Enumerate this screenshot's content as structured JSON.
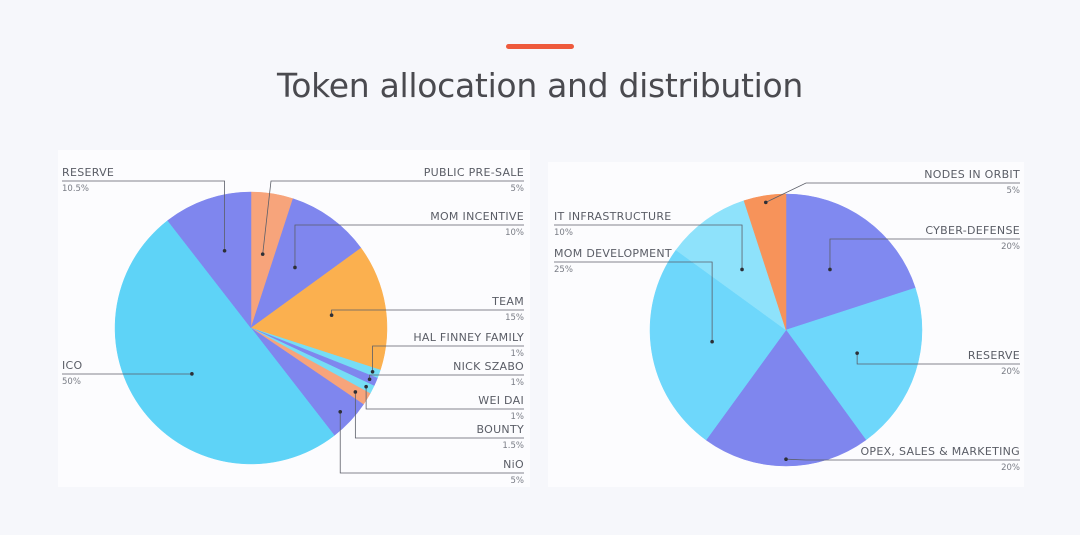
{
  "header": {
    "title": "Token allocation and distribution",
    "accent_color": "#ee5a3c"
  },
  "chart_data": [
    {
      "type": "pie",
      "title": "",
      "slices": [
        {
          "label": "PUBLIC PRE-SALE",
          "value_label": "5%",
          "value": 5,
          "color": "#f7a47b"
        },
        {
          "label": "MOM INCENTIVE",
          "value_label": "10%",
          "value": 10,
          "color": "#7f86ee"
        },
        {
          "label": "TEAM",
          "value_label": "15%",
          "value": 15,
          "color": "#fbb04f"
        },
        {
          "label": "HAL FINNEY FAMILY",
          "value_label": "1%",
          "value": 1,
          "color": "#76ddf5"
        },
        {
          "label": "NICK SZABO",
          "value_label": "1%",
          "value": 1,
          "color": "#7f86ee"
        },
        {
          "label": "WEI DAI",
          "value_label": "1%",
          "value": 1,
          "color": "#76ddf5"
        },
        {
          "label": "BOUNTY",
          "value_label": "1.5%",
          "value": 1.5,
          "color": "#f7a47b"
        },
        {
          "label": "NiO",
          "value_label": "5%",
          "value": 5,
          "color": "#7f86ee"
        },
        {
          "label": "ICO",
          "value_label": "50%",
          "value": 50,
          "color": "#5ed3f7"
        },
        {
          "label": "RESERVE",
          "value_label": "10.5%",
          "value": 10.5,
          "color": "#7f86ee"
        }
      ]
    },
    {
      "type": "pie",
      "title": "",
      "slices": [
        {
          "label": "CYBER-DEFENSE",
          "value_label": "20%",
          "value": 20,
          "color": "#8089f0"
        },
        {
          "label": "RESERVE",
          "value_label": "20%",
          "value": 20,
          "color": "#6ed7fb"
        },
        {
          "label": "OPEX, SALES & MARKETING",
          "value_label": "20%",
          "value": 20,
          "color": "#7f86ee"
        },
        {
          "label": "MOM DEVELOPMENT",
          "value_label": "25%",
          "value": 25,
          "color": "#6ed7fb"
        },
        {
          "label": "IT  INFRASTRUCTURE",
          "value_label": "10%",
          "value": 10,
          "color": "#8ee2fb"
        },
        {
          "label": "NODES IN  ORBIT",
          "value_label": "5%",
          "value": 5,
          "color": "#f7935a"
        }
      ]
    }
  ]
}
